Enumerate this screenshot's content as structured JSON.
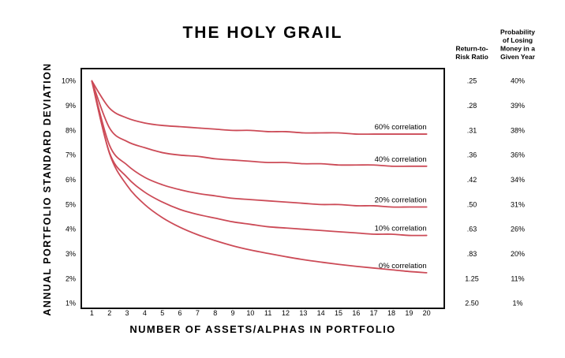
{
  "chart_data": {
    "type": "line",
    "title": "THE HOLY GRAIL",
    "xlabel": "NUMBER OF ASSETS/ALPHAS IN PORTFOLIO",
    "ylabel": "ANNUAL PORTFOLIO STANDARD DEVIATION",
    "x": [
      1,
      2,
      3,
      4,
      5,
      6,
      7,
      8,
      9,
      10,
      11,
      12,
      13,
      14,
      15,
      16,
      17,
      18,
      19,
      20
    ],
    "x_tick_labels": [
      "1",
      "2",
      "3",
      "4",
      "5",
      "6",
      "7",
      "8",
      "9",
      "10",
      "11",
      "12",
      "13",
      "14",
      "15",
      "16",
      "17",
      "18",
      "19",
      "20"
    ],
    "xlim": [
      0.4,
      21.0
    ],
    "ylim": [
      0.8,
      10.5
    ],
    "y_ticks": [
      1,
      2,
      3,
      4,
      5,
      6,
      7,
      8,
      9,
      10
    ],
    "y_tick_labels": [
      "1%",
      "2%",
      "3%",
      "4%",
      "5%",
      "6%",
      "7%",
      "8%",
      "9%",
      "10%"
    ],
    "grid": false,
    "line_color": "#cc4b57",
    "series": [
      {
        "name": "60% correlation",
        "label": "60% correlation",
        "values": [
          10.0,
          8.9,
          8.5,
          8.3,
          8.2,
          8.15,
          8.1,
          8.05,
          8.0,
          8.0,
          7.95,
          7.95,
          7.9,
          7.9,
          7.9,
          7.85,
          7.85,
          7.85,
          7.85,
          7.85
        ]
      },
      {
        "name": "40% correlation",
        "label": "40% correlation",
        "values": [
          10.0,
          8.1,
          7.55,
          7.3,
          7.1,
          7.0,
          6.95,
          6.85,
          6.8,
          6.75,
          6.7,
          6.7,
          6.65,
          6.65,
          6.6,
          6.6,
          6.6,
          6.55,
          6.55,
          6.55
        ]
      },
      {
        "name": "20% correlation",
        "label": "20% correlation",
        "values": [
          10.0,
          7.4,
          6.6,
          6.1,
          5.8,
          5.6,
          5.45,
          5.35,
          5.25,
          5.2,
          5.15,
          5.1,
          5.05,
          5.0,
          5.0,
          4.95,
          4.95,
          4.9,
          4.9,
          4.9
        ]
      },
      {
        "name": "10% correlation",
        "label": "10% correlation",
        "values": [
          10.0,
          7.1,
          6.1,
          5.5,
          5.1,
          4.8,
          4.6,
          4.45,
          4.3,
          4.2,
          4.1,
          4.05,
          4.0,
          3.95,
          3.9,
          3.85,
          3.8,
          3.8,
          3.75,
          3.75
        ]
      },
      {
        "name": "0% correlation",
        "label": "0% correlation",
        "values": [
          10.0,
          7.07,
          5.77,
          5.0,
          4.47,
          4.08,
          3.78,
          3.54,
          3.33,
          3.16,
          3.02,
          2.89,
          2.77,
          2.67,
          2.58,
          2.5,
          2.43,
          2.36,
          2.29,
          2.24
        ]
      }
    ],
    "side_table": {
      "columns": [
        {
          "header": [
            "Return-to-",
            "Risk Ratio"
          ],
          "values": [
            ".25",
            ".28",
            ".31",
            ".36",
            ".42",
            ".50",
            ".63",
            ".83",
            "1.25",
            "2.50"
          ]
        },
        {
          "header": [
            "Probability",
            "of Losing",
            "Money in a",
            "Given Year"
          ],
          "values": [
            "40%",
            "39%",
            "38%",
            "36%",
            "34%",
            "31%",
            "26%",
            "20%",
            "11%",
            "1%"
          ]
        }
      ]
    }
  }
}
